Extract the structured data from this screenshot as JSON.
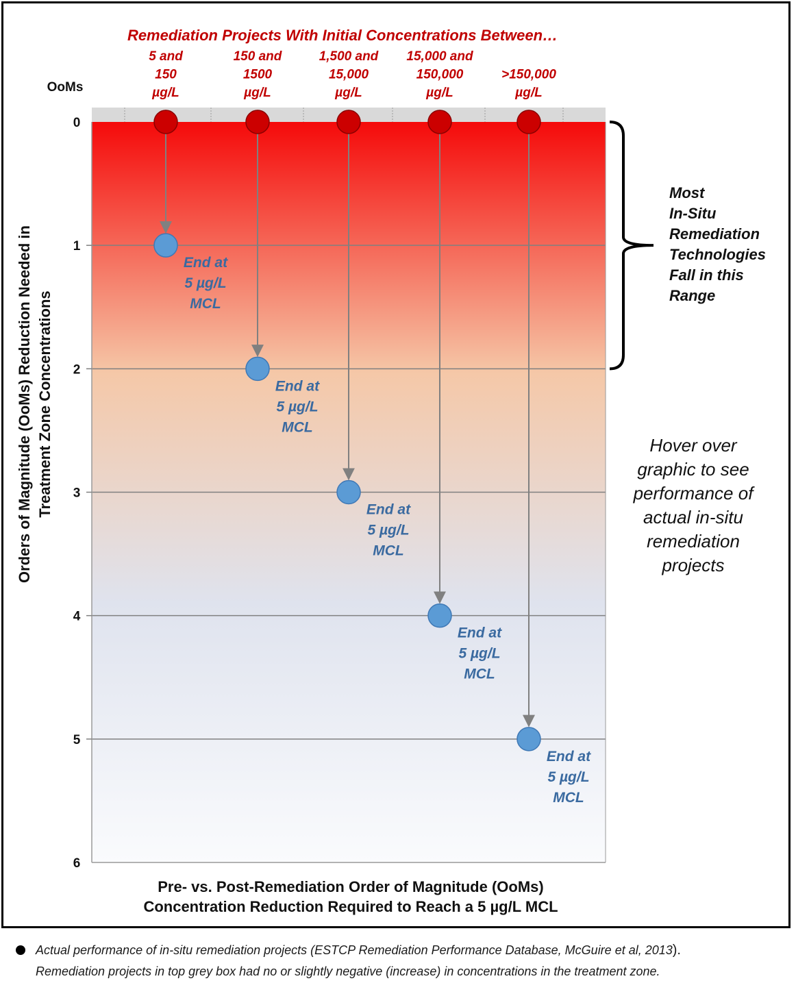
{
  "chart_data": {
    "type": "scatter",
    "title": "Remediation Projects With Initial Concentrations Between…",
    "ylabel_lines": [
      "Orders of Magnitude (OoMs) Reduction Needed in",
      "Treatment Zone Concentrations"
    ],
    "xlabel_lines": [
      "Pre- vs. Post-Remediation Order of Magnitude (OoMs)",
      "Concentration Reduction Required to Reach a 5 µg/L MCL"
    ],
    "y_axis_header": "OoMs",
    "ylim": [
      0,
      6
    ],
    "y_ticks": [
      "0",
      "1",
      "2",
      "3",
      "4",
      "5",
      "6"
    ],
    "y_inverted": true,
    "grid": true,
    "categories": [
      {
        "lines": [
          "5 and",
          "150",
          "µg/L"
        ],
        "start": 0,
        "end": 1
      },
      {
        "lines": [
          "150 and",
          "1500",
          "µg/L"
        ],
        "start": 0,
        "end": 2
      },
      {
        "lines": [
          "1,500 and",
          "15,000",
          "µg/L"
        ],
        "start": 0,
        "end": 3
      },
      {
        "lines": [
          "15,000 and",
          "150,000",
          "µg/L"
        ],
        "start": 0,
        "end": 4
      },
      {
        "lines": [
          ">150,000",
          "µg/L"
        ],
        "start": 0,
        "end": 5
      }
    ],
    "end_label_lines": [
      "End at",
      "5 µg/L",
      "MCL"
    ],
    "bracket_range": [
      0,
      2
    ],
    "bracket_label_lines": [
      "Most",
      "In-Situ",
      "Remediation",
      "Technologies",
      "Fall in this",
      "Range"
    ],
    "hover_note_lines": [
      "Hover over",
      "graphic to see",
      "performance of",
      "actual in-situ",
      "remediation",
      "projects"
    ]
  },
  "footnote": {
    "line1": "Actual performance of in-situ remediation projects (ESTCP Remediation Performance Database, McGuire et al, 2013",
    "line1_end": ").",
    "line2": "Remediation projects in top grey box had no or slightly negative (increase) in concentrations in the treatment zone."
  },
  "colors": {
    "start_marker": "#cc0000",
    "end_marker": "#5b9bd5",
    "category_text": "#c00000",
    "end_label_text": "#3a6aa0",
    "arrow": "#808080",
    "grey_band": "#d9d9d9",
    "gradient": [
      "#f50a0a",
      "#f5c8a8",
      "#dfe3ee",
      "#fafbfd"
    ]
  }
}
